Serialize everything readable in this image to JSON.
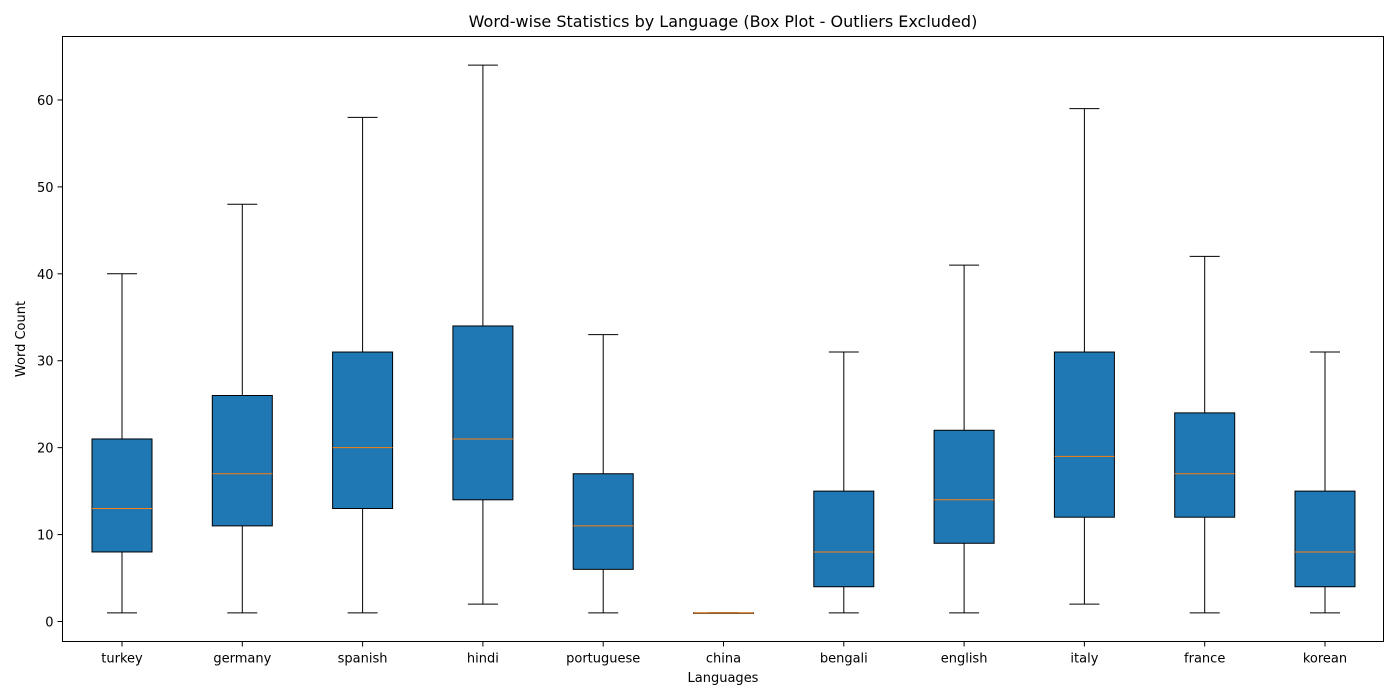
{
  "chart_data": {
    "type": "box",
    "title": "Word-wise Statistics by Language (Box Plot - Outliers Excluded)",
    "xlabel": "Languages",
    "ylabel": "Word Count",
    "ylim": [
      -2.3,
      67.3
    ],
    "yticks": [
      0,
      10,
      20,
      30,
      40,
      50,
      60
    ],
    "grid": false,
    "box_color": "#1f77b4",
    "median_color": "#ff7f0e",
    "series": [
      {
        "category": "turkey",
        "min": 1,
        "q1": 8,
        "median": 13,
        "q3": 21,
        "max": 40
      },
      {
        "category": "germany",
        "min": 1,
        "q1": 11,
        "median": 17,
        "q3": 26,
        "max": 48
      },
      {
        "category": "spanish",
        "min": 1,
        "q1": 13,
        "median": 20,
        "q3": 31,
        "max": 58
      },
      {
        "category": "hindi",
        "min": 2,
        "q1": 14,
        "median": 21,
        "q3": 34,
        "max": 64
      },
      {
        "category": "portuguese",
        "min": 1,
        "q1": 6,
        "median": 11,
        "q3": 17,
        "max": 33
      },
      {
        "category": "china",
        "min": 1,
        "q1": 1,
        "median": 1,
        "q3": 1,
        "max": 1
      },
      {
        "category": "bengali",
        "min": 1,
        "q1": 4,
        "median": 8,
        "q3": 15,
        "max": 31
      },
      {
        "category": "english",
        "min": 1,
        "q1": 9,
        "median": 14,
        "q3": 22,
        "max": 41
      },
      {
        "category": "italy",
        "min": 2,
        "q1": 12,
        "median": 19,
        "q3": 31,
        "max": 59
      },
      {
        "category": "france",
        "min": 1,
        "q1": 12,
        "median": 17,
        "q3": 24,
        "max": 42
      },
      {
        "category": "korean",
        "min": 1,
        "q1": 4,
        "median": 8,
        "q3": 15,
        "max": 31
      }
    ]
  }
}
